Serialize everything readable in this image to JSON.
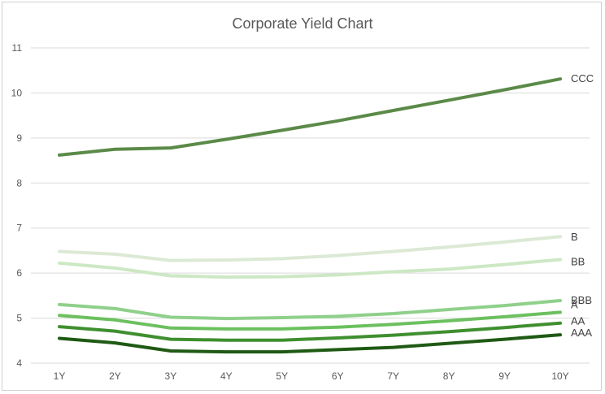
{
  "chart_data": {
    "type": "line",
    "title": "Corporate Yield Chart",
    "xlabel": "",
    "ylabel": "",
    "categories": [
      "1Y",
      "2Y",
      "3Y",
      "4Y",
      "5Y",
      "6Y",
      "7Y",
      "8Y",
      "9Y",
      "10Y"
    ],
    "ylim": [
      4,
      11
    ],
    "yticks": [
      4,
      5,
      6,
      7,
      8,
      9,
      10,
      11
    ],
    "grid": true,
    "legend": "none",
    "series": [
      {
        "name": "CCC",
        "color": "#5b8a48",
        "values": [
          8.62,
          8.75,
          8.78,
          8.97,
          9.17,
          9.38,
          9.61,
          9.84,
          10.07,
          10.31
        ]
      },
      {
        "name": "B",
        "color": "#dbe9d5",
        "values": [
          6.48,
          6.42,
          6.28,
          6.29,
          6.32,
          6.39,
          6.48,
          6.58,
          6.69,
          6.81
        ]
      },
      {
        "name": "BB",
        "color": "#cde8c4",
        "values": [
          6.22,
          6.11,
          5.94,
          5.91,
          5.92,
          5.96,
          6.03,
          6.09,
          6.19,
          6.3
        ]
      },
      {
        "name": "BBB",
        "color": "#8fd08a",
        "values": [
          5.3,
          5.21,
          5.02,
          4.99,
          5.01,
          5.04,
          5.1,
          5.19,
          5.28,
          5.39
        ]
      },
      {
        "name": "A",
        "color": "#6cc05f",
        "values": [
          5.06,
          4.96,
          4.78,
          4.76,
          4.76,
          4.8,
          4.86,
          4.94,
          5.03,
          5.13
        ]
      },
      {
        "name": "AA",
        "color": "#3f8f2f",
        "values": [
          4.81,
          4.71,
          4.53,
          4.51,
          4.51,
          4.56,
          4.62,
          4.7,
          4.79,
          4.89
        ]
      },
      {
        "name": "AAA",
        "color": "#1f5a14",
        "values": [
          4.55,
          4.45,
          4.27,
          4.25,
          4.25,
          4.3,
          4.35,
          4.44,
          4.53,
          4.63
        ]
      }
    ]
  }
}
